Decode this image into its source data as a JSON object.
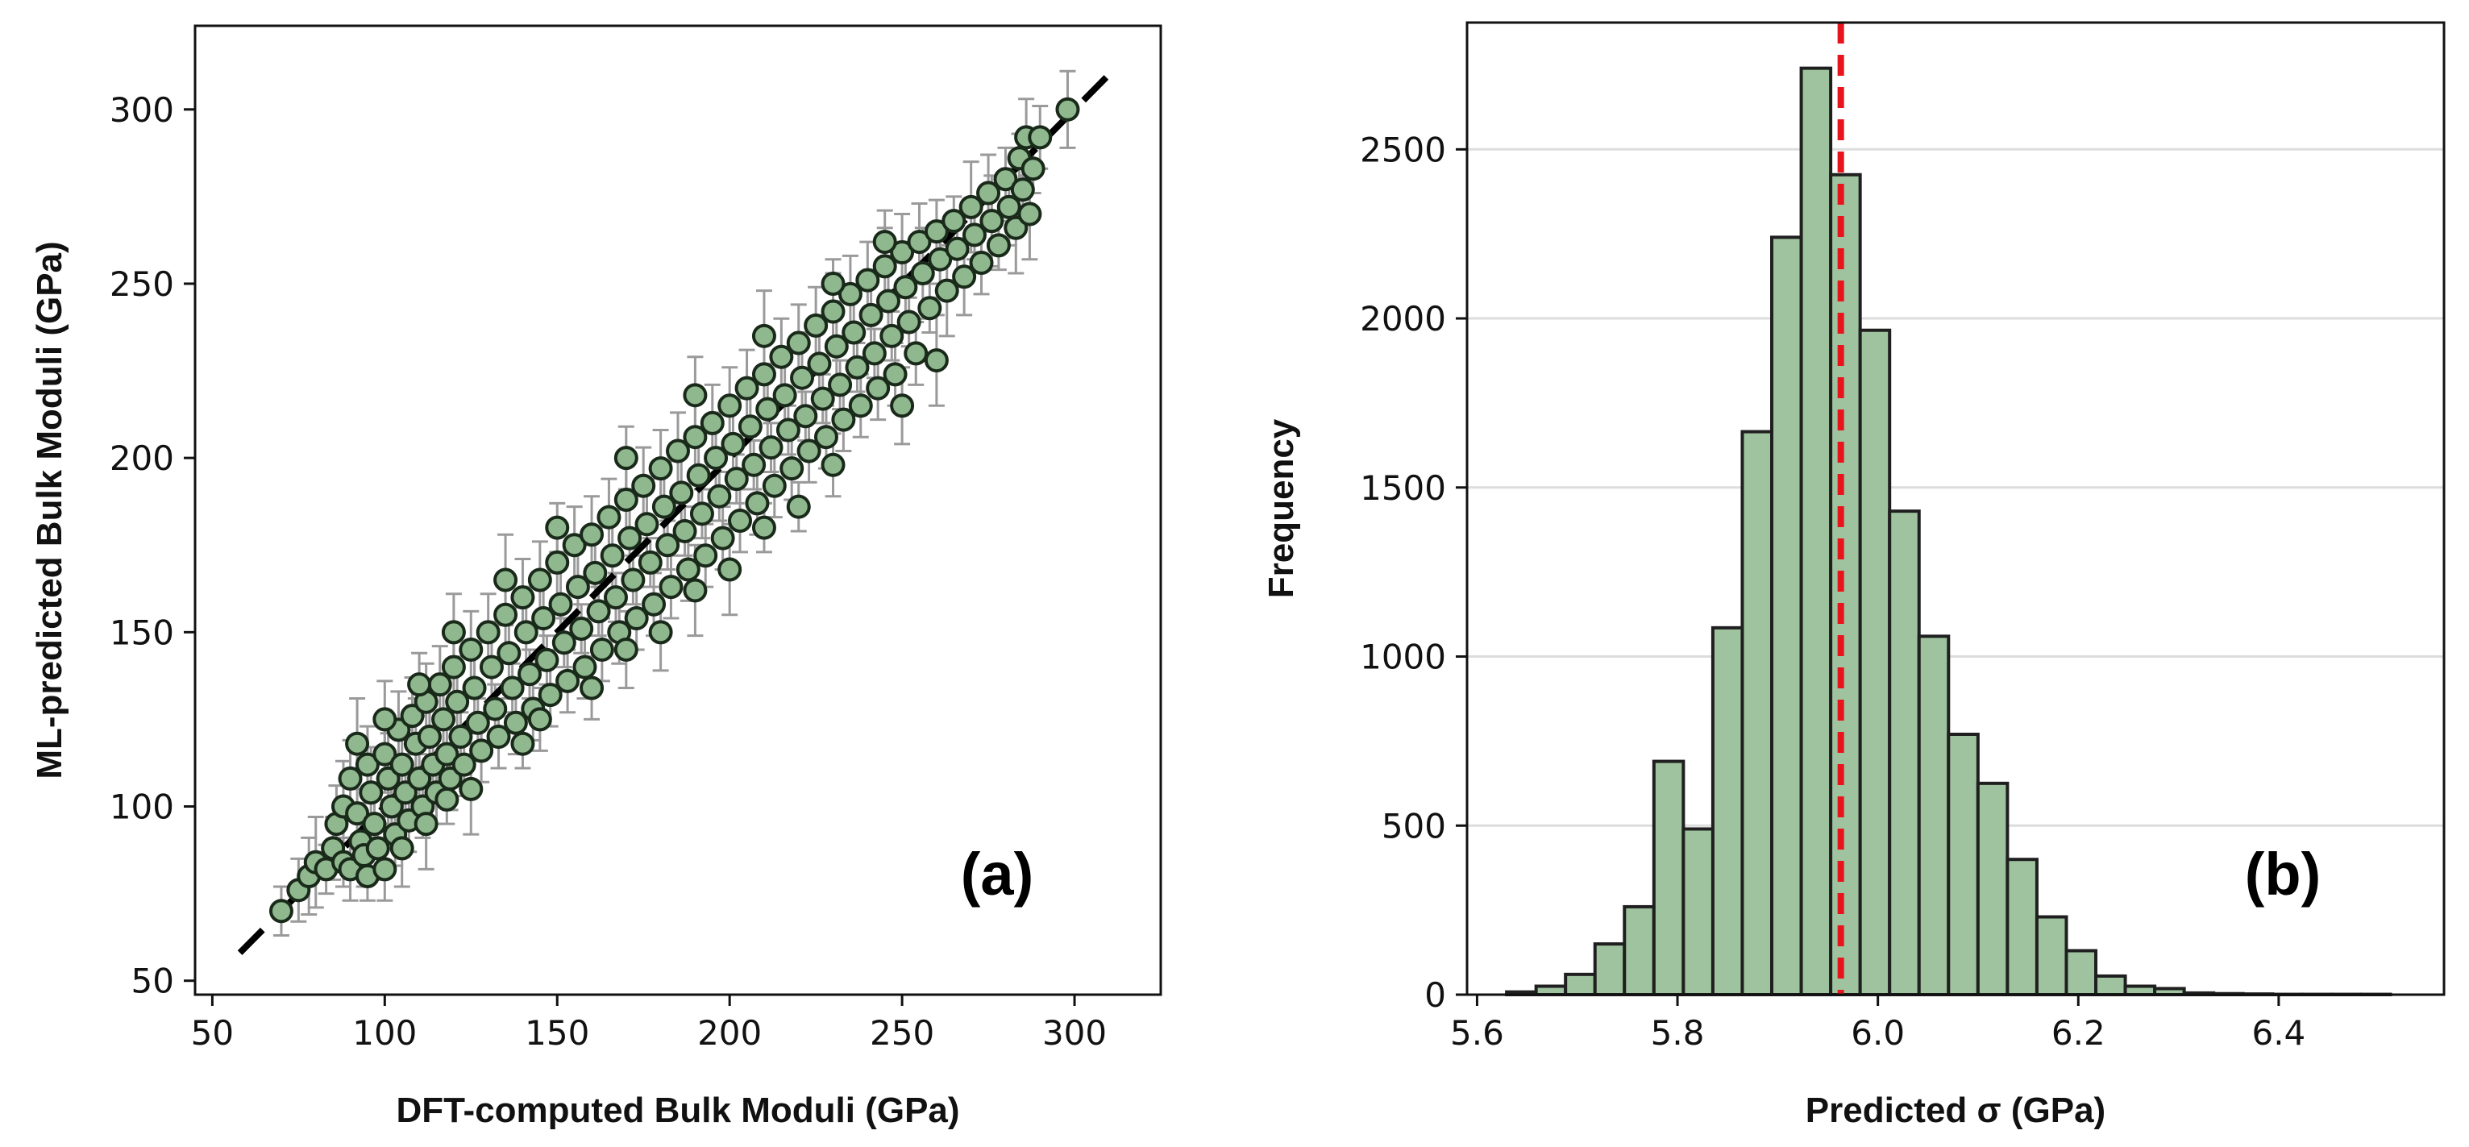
{
  "chart_data": [
    {
      "type": "scatter",
      "panel_label": "(a)",
      "xlabel": "DFT-computed  Bulk Moduli (GPa)",
      "ylabel": "ML-predicted Bulk Moduli (GPa)",
      "xlim": [
        45,
        325
      ],
      "ylim": [
        46,
        324
      ],
      "xticks": [
        50,
        100,
        150,
        200,
        250,
        300
      ],
      "yticks": [
        50,
        100,
        150,
        200,
        250,
        300
      ],
      "reference_line": {
        "style": "dashed",
        "color": "#000000",
        "x": [
          58,
          312
        ],
        "y": [
          58,
          312
        ]
      },
      "marker_fill": "#8fb88f",
      "marker_edge": "#1a2a1a",
      "errorbar_color": "#9a9a9a",
      "points": [
        [
          70,
          70
        ],
        [
          75,
          76
        ],
        [
          78,
          80
        ],
        [
          80,
          84
        ],
        [
          83,
          82
        ],
        [
          85,
          88
        ],
        [
          86,
          95
        ],
        [
          88,
          100
        ],
        [
          88,
          84
        ],
        [
          90,
          82
        ],
        [
          90,
          108
        ],
        [
          92,
          98
        ],
        [
          93,
          90
        ],
        [
          94,
          86
        ],
        [
          95,
          112
        ],
        [
          96,
          104
        ],
        [
          97,
          95
        ],
        [
          98,
          88
        ],
        [
          100,
          115
        ],
        [
          101,
          108
        ],
        [
          102,
          100
        ],
        [
          103,
          92
        ],
        [
          104,
          122
        ],
        [
          105,
          112
        ],
        [
          106,
          104
        ],
        [
          107,
          96
        ],
        [
          108,
          126
        ],
        [
          109,
          118
        ],
        [
          110,
          108
        ],
        [
          111,
          100
        ],
        [
          112,
          130
        ],
        [
          113,
          120
        ],
        [
          114,
          112
        ],
        [
          115,
          104
        ],
        [
          116,
          135
        ],
        [
          117,
          125
        ],
        [
          118,
          115
        ],
        [
          119,
          108
        ],
        [
          120,
          140
        ],
        [
          121,
          130
        ],
        [
          122,
          120
        ],
        [
          123,
          112
        ],
        [
          125,
          145
        ],
        [
          126,
          134
        ],
        [
          127,
          124
        ],
        [
          128,
          116
        ],
        [
          130,
          150
        ],
        [
          131,
          140
        ],
        [
          132,
          128
        ],
        [
          133,
          120
        ],
        [
          135,
          155
        ],
        [
          136,
          144
        ],
        [
          137,
          134
        ],
        [
          138,
          124
        ],
        [
          140,
          160
        ],
        [
          141,
          150
        ],
        [
          142,
          138
        ],
        [
          143,
          128
        ],
        [
          145,
          165
        ],
        [
          146,
          154
        ],
        [
          147,
          142
        ],
        [
          148,
          132
        ],
        [
          150,
          170
        ],
        [
          151,
          158
        ],
        [
          152,
          147
        ],
        [
          153,
          136
        ],
        [
          155,
          175
        ],
        [
          156,
          163
        ],
        [
          157,
          151
        ],
        [
          158,
          140
        ],
        [
          160,
          178
        ],
        [
          161,
          167
        ],
        [
          162,
          156
        ],
        [
          163,
          145
        ],
        [
          165,
          183
        ],
        [
          166,
          172
        ],
        [
          167,
          160
        ],
        [
          168,
          150
        ],
        [
          170,
          188
        ],
        [
          171,
          177
        ],
        [
          172,
          165
        ],
        [
          173,
          154
        ],
        [
          175,
          192
        ],
        [
          176,
          181
        ],
        [
          177,
          170
        ],
        [
          178,
          158
        ],
        [
          180,
          197
        ],
        [
          181,
          186
        ],
        [
          182,
          175
        ],
        [
          183,
          163
        ],
        [
          185,
          202
        ],
        [
          186,
          190
        ],
        [
          187,
          179
        ],
        [
          188,
          168
        ],
        [
          190,
          206
        ],
        [
          191,
          195
        ],
        [
          192,
          184
        ],
        [
          193,
          172
        ],
        [
          195,
          210
        ],
        [
          196,
          200
        ],
        [
          197,
          189
        ],
        [
          198,
          177
        ],
        [
          200,
          215
        ],
        [
          201,
          204
        ],
        [
          202,
          194
        ],
        [
          203,
          182
        ],
        [
          205,
          220
        ],
        [
          206,
          209
        ],
        [
          207,
          198
        ],
        [
          208,
          187
        ],
        [
          210,
          224
        ],
        [
          211,
          214
        ],
        [
          212,
          203
        ],
        [
          213,
          192
        ],
        [
          215,
          229
        ],
        [
          216,
          218
        ],
        [
          217,
          208
        ],
        [
          218,
          197
        ],
        [
          220,
          233
        ],
        [
          221,
          223
        ],
        [
          222,
          212
        ],
        [
          223,
          202
        ],
        [
          225,
          238
        ],
        [
          226,
          227
        ],
        [
          227,
          217
        ],
        [
          228,
          206
        ],
        [
          230,
          242
        ],
        [
          231,
          232
        ],
        [
          232,
          221
        ],
        [
          233,
          211
        ],
        [
          235,
          247
        ],
        [
          236,
          236
        ],
        [
          237,
          226
        ],
        [
          238,
          215
        ],
        [
          240,
          251
        ],
        [
          241,
          241
        ],
        [
          242,
          230
        ],
        [
          243,
          220
        ],
        [
          245,
          255
        ],
        [
          246,
          245
        ],
        [
          247,
          235
        ],
        [
          248,
          224
        ],
        [
          250,
          259
        ],
        [
          251,
          249
        ],
        [
          252,
          239
        ],
        [
          254,
          230
        ],
        [
          255,
          262
        ],
        [
          256,
          253
        ],
        [
          258,
          243
        ],
        [
          260,
          265
        ],
        [
          261,
          257
        ],
        [
          263,
          248
        ],
        [
          265,
          268
        ],
        [
          266,
          260
        ],
        [
          268,
          252
        ],
        [
          270,
          272
        ],
        [
          271,
          264
        ],
        [
          273,
          256
        ],
        [
          275,
          276
        ],
        [
          276,
          268
        ],
        [
          278,
          261
        ],
        [
          280,
          280
        ],
        [
          281,
          272
        ],
        [
          283,
          266
        ],
        [
          284,
          286
        ],
        [
          285,
          277
        ],
        [
          286,
          292
        ],
        [
          287,
          270
        ],
        [
          288,
          283
        ],
        [
          290,
          292
        ],
        [
          298,
          300
        ],
        [
          125,
          105
        ],
        [
          140,
          118
        ],
        [
          160,
          134
        ],
        [
          180,
          150
        ],
        [
          200,
          168
        ],
        [
          220,
          186
        ],
        [
          110,
          135
        ],
        [
          120,
          150
        ],
        [
          135,
          165
        ],
        [
          95,
          80
        ],
        [
          100,
          82
        ],
        [
          105,
          88
        ],
        [
          112,
          95
        ],
        [
          118,
          102
        ],
        [
          145,
          125
        ],
        [
          170,
          145
        ],
        [
          190,
          162
        ],
        [
          210,
          180
        ],
        [
          230,
          198
        ],
        [
          250,
          215
        ],
        [
          260,
          228
        ],
        [
          150,
          180
        ],
        [
          170,
          200
        ],
        [
          190,
          218
        ],
        [
          210,
          235
        ],
        [
          230,
          250
        ],
        [
          245,
          262
        ],
        [
          100,
          125
        ],
        [
          92,
          118
        ]
      ]
    },
    {
      "type": "bar",
      "subtype": "histogram",
      "panel_label": "(b)",
      "xlabel": "Predicted σ (GPa)",
      "ylabel": "Frequency",
      "xlim": [
        5.59,
        6.565
      ],
      "ylim": [
        0,
        2875
      ],
      "xticks": [
        5.6,
        5.8,
        6.0,
        6.2,
        6.4
      ],
      "xtick_labels": [
        "5.6",
        "5.8",
        "6.0",
        "6.2",
        "6.4"
      ],
      "yticks": [
        0,
        500,
        1000,
        1500,
        2000,
        2500
      ],
      "grid": "horizontal",
      "bar_fill": "#9fc39f",
      "bar_edge": "#1f1f1f",
      "bin_width": 0.0294,
      "bin_starts": [
        5.6295,
        5.6589,
        5.6883,
        5.7177,
        5.7471,
        5.7765,
        5.8059,
        5.8353,
        5.8647,
        5.8941,
        5.9235,
        5.9529,
        5.9823,
        6.0117,
        6.0411,
        6.0705,
        6.0999,
        6.1293,
        6.1587,
        6.1881,
        6.2175,
        6.2469,
        6.2763,
        6.3057,
        6.3351,
        6.3645,
        6.3939,
        6.4233,
        6.4527,
        6.4821
      ],
      "values": [
        8,
        25,
        60,
        150,
        260,
        690,
        490,
        1085,
        1665,
        2240,
        2740,
        2425,
        1965,
        1430,
        1060,
        770,
        625,
        400,
        230,
        130,
        55,
        25,
        18,
        5,
        3,
        2,
        1,
        1,
        1,
        1
      ],
      "mean_line": {
        "x": 5.963,
        "style": "dashed",
        "color": "#e8141b"
      }
    }
  ]
}
